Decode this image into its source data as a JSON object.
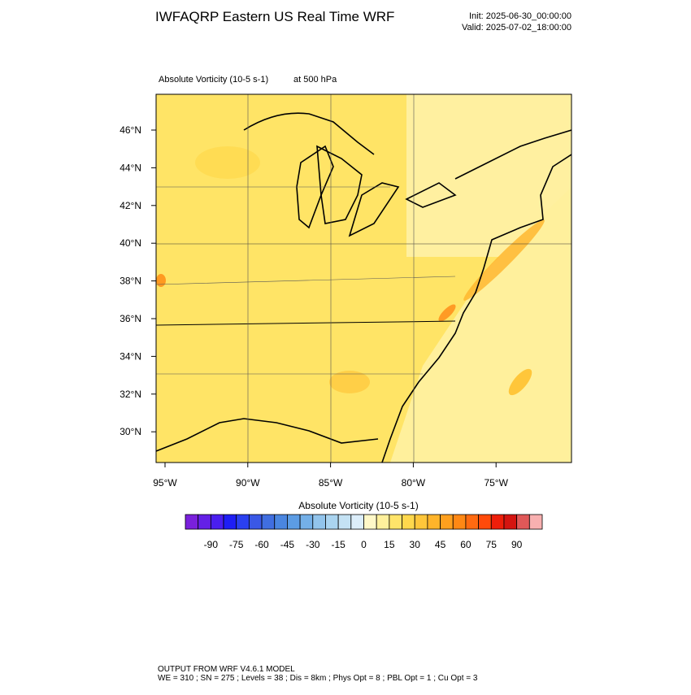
{
  "header": {
    "title": "IWFAQRP Eastern US Real Time WRF",
    "init": "Init: 2025-06-30_00:00:00",
    "valid": "Valid: 2025-07-02_18:00:00"
  },
  "map": {
    "field_label": "Absolute Vorticity   (10-5 s-1)",
    "level_label": "at   500 hPa",
    "lat_labels": [
      "46°N",
      "44°N",
      "42°N",
      "40°N",
      "38°N",
      "36°N",
      "34°N",
      "32°N",
      "30°N"
    ],
    "lon_labels": [
      "95°W",
      "90°W",
      "85°W",
      "80°W",
      "75°W"
    ]
  },
  "colorbar": {
    "title": "Absolute Vorticity  (10-5 s-1)",
    "ticks": [
      -90,
      -75,
      -60,
      -45,
      -30,
      -15,
      0,
      15,
      30,
      45,
      60,
      75,
      90
    ],
    "colors": [
      "#7a20dc",
      "#6420e6",
      "#4a1ef0",
      "#1e1ef5",
      "#2a40f0",
      "#3a58e6",
      "#406ee0",
      "#4a86e0",
      "#5c9ce4",
      "#74b0e8",
      "#92c4ec",
      "#aad4f0",
      "#c4e2f4",
      "#dceefa",
      "#fff8c8",
      "#fff09c",
      "#ffe46a",
      "#ffd84c",
      "#ffc63a",
      "#ffb42a",
      "#ffa01e",
      "#ff8814",
      "#ff6a10",
      "#ff4a0a",
      "#ee1e0a",
      "#d41410",
      "#e05858",
      "#f8b0b0"
    ]
  },
  "footer": {
    "line1": "OUTPUT FROM WRF V4.6.1 MODEL",
    "line2": "WE = 310 ; SN = 275 ; Levels = 38 ; Dis = 8km ; Phys Opt = 8 ; PBL Opt = 1 ; Cu Opt = 3"
  }
}
